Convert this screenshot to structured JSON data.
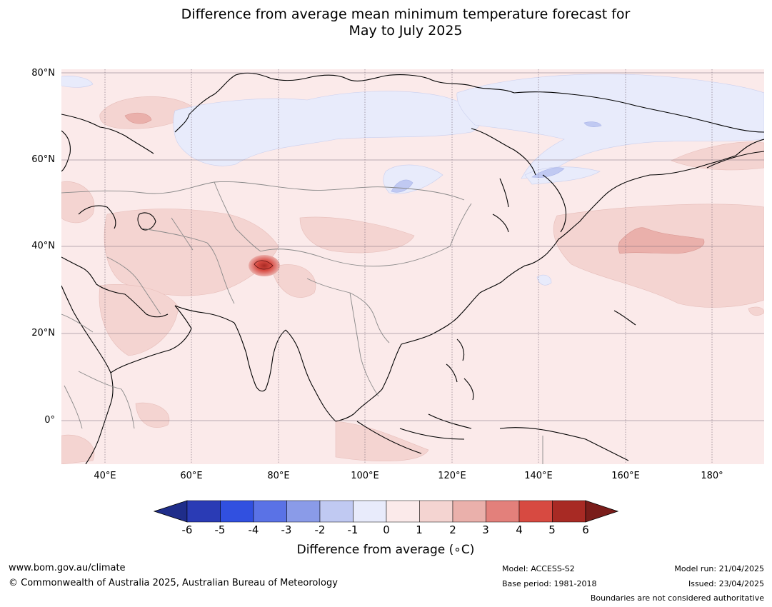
{
  "title": {
    "line1": "Difference from average mean minimum temperature forecast for",
    "line2": "May to July 2025"
  },
  "map": {
    "region": "Asia and West Pacific",
    "lat_labels": [
      "80°N",
      "60°N",
      "40°N",
      "20°N",
      "0°"
    ],
    "lon_labels": [
      "40°E",
      "60°E",
      "80°E",
      "100°E",
      "120°E",
      "140°E",
      "160°E",
      "180°"
    ],
    "colors": {
      "ocean_background": "#fbeaea",
      "warm_1_2": "#f4d4d1",
      "warm_2_3": "#eab0ab",
      "cool_0_1": "#e8ebfb",
      "cool_1_2": "#c0c9f2",
      "coastline": "#000000",
      "boundaries": "#888888"
    }
  },
  "colorbar": {
    "ticks": [
      "-6",
      "-5",
      "-4",
      "-3",
      "-2",
      "-1",
      "0",
      "1",
      "2",
      "3",
      "4",
      "5",
      "6"
    ],
    "colors": [
      "#1f2d8a",
      "#2a3bb5",
      "#3150e0",
      "#5a72e6",
      "#8a9be8",
      "#c0c9f2",
      "#e8ebfb",
      "#fbeaea",
      "#f4d4d1",
      "#eab0ab",
      "#e3807b",
      "#d74a41",
      "#a82a24",
      "#7a1d1a"
    ],
    "label": "Difference from average (∘C)"
  },
  "footer": {
    "website": "www.bom.gov.au/climate",
    "copyright": "© Commonwealth of Australia 2025, Australian Bureau of Meteorology",
    "model": "Model: ACCESS-S2",
    "base_period": "Base period: 1981-2018",
    "model_run": "Model run: 21/04/2025",
    "issued": "Issued: 23/04/2025",
    "disclaimer": "Boundaries are not considered authoritative"
  }
}
